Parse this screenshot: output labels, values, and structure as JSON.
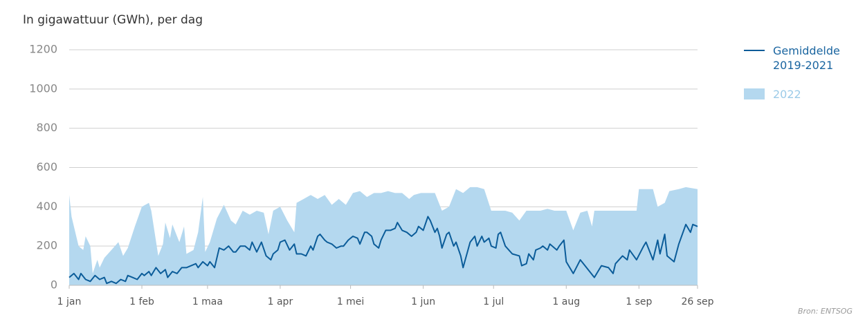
{
  "chart_data": {
    "type": "line",
    "title": "In gigawattuur (GWh), per dag",
    "source": "Bron: ENTSOG",
    "xlim": [
      0,
      268
    ],
    "xticks": [
      {
        "value": 0,
        "label": "1 jan"
      },
      {
        "value": 31,
        "label": "1 feb"
      },
      {
        "value": 59,
        "label": "1 maa"
      },
      {
        "value": 90,
        "label": "1 apr"
      },
      {
        "value": 120,
        "label": "1 mei"
      },
      {
        "value": 151,
        "label": "1 jun"
      },
      {
        "value": 181,
        "label": "1 jul"
      },
      {
        "value": 212,
        "label": "1 aug"
      },
      {
        "value": 243,
        "label": "1 sep"
      },
      {
        "value": 268,
        "label": "26 sep"
      }
    ],
    "ylim": [
      0,
      1200
    ],
    "yticks": [
      0,
      200,
      400,
      600,
      800,
      1000,
      1200
    ],
    "grid": true,
    "legend": "right",
    "series": [
      {
        "name": "Gemiddelde 2019-2021",
        "type": "line",
        "color": "#0b5c99",
        "x": [
          0,
          2,
          4,
          5,
          7,
          9,
          11,
          13,
          15,
          16,
          18,
          20,
          22,
          24,
          25,
          27,
          29,
          31,
          32,
          34,
          35,
          37,
          39,
          41,
          42,
          44,
          46,
          48,
          50,
          52,
          54,
          55,
          57,
          59,
          60,
          62,
          64,
          66,
          68,
          70,
          71,
          73,
          75,
          77,
          78,
          80,
          82,
          84,
          86,
          87,
          89,
          90,
          92,
          94,
          96,
          97,
          99,
          101,
          103,
          104,
          106,
          107,
          109,
          110,
          112,
          114,
          116,
          117,
          119,
          121,
          123,
          124,
          126,
          127,
          129,
          130,
          132,
          133,
          135,
          137,
          139,
          140,
          142,
          144,
          146,
          148,
          149,
          151,
          153,
          154,
          156,
          157,
          158,
          159,
          161,
          162,
          164,
          165,
          167,
          168,
          171,
          173,
          174,
          176,
          177,
          179,
          180,
          182,
          183,
          184,
          186,
          189,
          192,
          193,
          195,
          196,
          198,
          199,
          201,
          202,
          204,
          205,
          207,
          208,
          209,
          211,
          212,
          215,
          218,
          220,
          224,
          227,
          230,
          232,
          233,
          236,
          238,
          239,
          242,
          245,
          246,
          248,
          249,
          251,
          252,
          254,
          255,
          258,
          260,
          263,
          265,
          266,
          268
        ],
        "values": [
          40,
          60,
          30,
          60,
          30,
          20,
          50,
          30,
          40,
          10,
          20,
          10,
          30,
          20,
          50,
          40,
          30,
          60,
          50,
          70,
          50,
          90,
          60,
          80,
          40,
          70,
          60,
          90,
          90,
          100,
          110,
          90,
          120,
          100,
          120,
          90,
          190,
          180,
          200,
          170,
          170,
          200,
          200,
          180,
          220,
          170,
          220,
          150,
          130,
          160,
          180,
          220,
          230,
          180,
          210,
          160,
          160,
          150,
          200,
          180,
          250,
          260,
          230,
          220,
          210,
          190,
          200,
          200,
          230,
          250,
          240,
          210,
          270,
          270,
          250,
          210,
          190,
          230,
          280,
          280,
          290,
          320,
          280,
          270,
          250,
          270,
          300,
          280,
          350,
          330,
          270,
          290,
          250,
          190,
          260,
          270,
          200,
          220,
          150,
          90,
          220,
          250,
          200,
          250,
          220,
          240,
          200,
          190,
          260,
          270,
          200,
          160,
          150,
          100,
          110,
          160,
          130,
          180,
          190,
          200,
          180,
          210,
          190,
          180,
          200,
          230,
          120,
          60,
          130,
          100,
          40,
          100,
          90,
          60,
          110,
          150,
          130,
          180,
          130,
          200,
          220,
          160,
          130,
          230,
          160,
          260,
          150,
          120,
          210,
          310,
          270,
          310,
          300
        ]
      },
      {
        "name": "2022",
        "type": "area",
        "color": "#b4d8ef",
        "x": [
          0,
          1,
          4,
          6,
          7,
          9,
          10,
          12,
          13,
          15,
          18,
          21,
          23,
          25,
          28,
          31,
          34,
          35,
          38,
          40,
          41,
          43,
          44,
          47,
          49,
          50,
          53,
          55,
          57,
          58,
          60,
          63,
          66,
          69,
          71,
          74,
          77,
          80,
          83,
          85,
          87,
          90,
          93,
          96,
          97,
          100,
          103,
          106,
          109,
          112,
          115,
          118,
          121,
          124,
          127,
          130,
          133,
          136,
          139,
          142,
          145,
          147,
          150,
          153,
          156,
          159,
          162,
          165,
          168,
          171,
          174,
          177,
          180,
          183,
          186,
          189,
          192,
          195,
          198,
          201,
          204,
          207,
          209,
          212,
          215,
          218,
          221,
          223,
          224,
          230,
          236,
          242,
          243,
          249,
          251,
          254,
          256,
          260,
          263,
          268
        ],
        "values": [
          460,
          350,
          200,
          180,
          250,
          200,
          60,
          130,
          90,
          140,
          180,
          220,
          150,
          190,
          300,
          400,
          420,
          380,
          150,
          210,
          320,
          240,
          310,
          220,
          300,
          160,
          180,
          270,
          450,
          170,
          220,
          340,
          410,
          330,
          310,
          380,
          360,
          380,
          370,
          260,
          380,
          400,
          330,
          270,
          420,
          440,
          460,
          440,
          460,
          410,
          440,
          410,
          470,
          480,
          450,
          470,
          470,
          480,
          470,
          470,
          440,
          460,
          470,
          470,
          470,
          380,
          400,
          490,
          470,
          500,
          500,
          490,
          380,
          380,
          380,
          370,
          330,
          380,
          380,
          380,
          390,
          380,
          380,
          380,
          280,
          370,
          380,
          300,
          380,
          380,
          380,
          380,
          490,
          490,
          400,
          420,
          480,
          490,
          500,
          490
        ]
      }
    ]
  }
}
